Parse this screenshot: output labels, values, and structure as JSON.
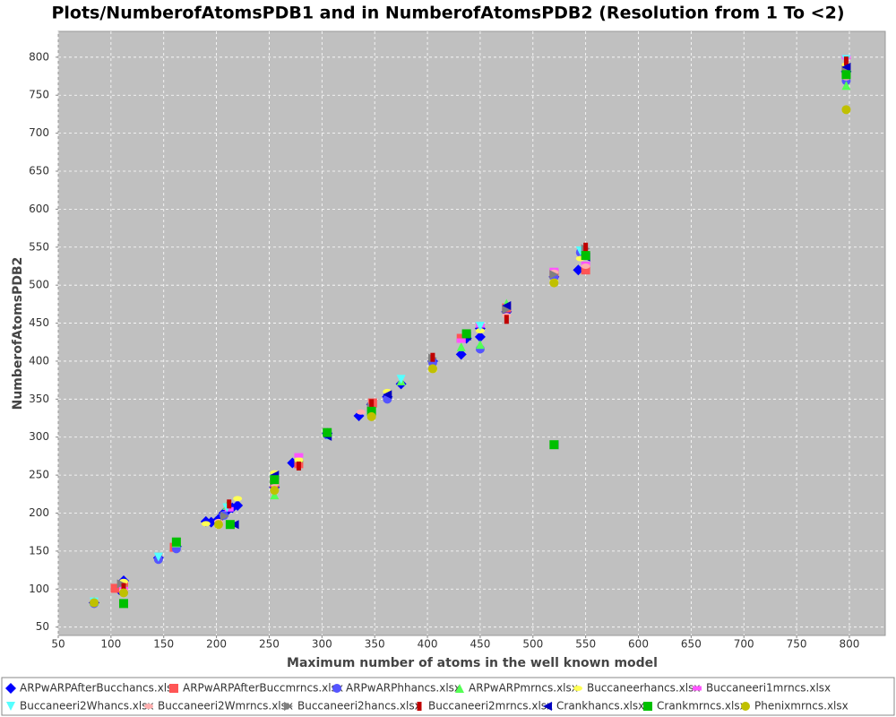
{
  "chart_data": {
    "type": "scatter",
    "title": "Plots/NumberofAtomsPDB1 and in NumberofAtomsPDB2 (Resolution from 1 To <2)",
    "x_label": "Maximum number of atoms in the well known model",
    "y_label": "NumberofAtomsPDB2",
    "xlim": [
      50,
      834
    ],
    "ylim": [
      39,
      834
    ],
    "xticks": [
      50,
      100,
      150,
      200,
      250,
      300,
      350,
      400,
      450,
      500,
      550,
      600,
      650,
      700,
      750,
      800
    ],
    "yticks": [
      50,
      100,
      150,
      200,
      250,
      300,
      350,
      400,
      450,
      500,
      550,
      600,
      650,
      700,
      750,
      800
    ],
    "grid": true,
    "series": [
      {
        "name": "ARPwARPAfterBucchancs.xlsx",
        "color": "#0000ff",
        "shape": "diamond",
        "x": [
          84,
          108,
          112,
          145,
          162,
          190,
          195,
          202,
          207,
          210,
          215,
          220,
          255,
          272,
          305,
          335,
          347,
          362,
          375,
          405,
          432,
          437,
          450,
          450,
          475,
          520,
          543,
          797
        ],
        "values": [
          82,
          99,
          111,
          141,
          156,
          189,
          188,
          192,
          200,
          203,
          207,
          210,
          234,
          266,
          305,
          328,
          343,
          353,
          370,
          400,
          409,
          430,
          443,
          432,
          465,
          511,
          520,
          781
        ]
      },
      {
        "name": "ARPwARPAfterBuccmrncs.xlsx",
        "color": "#ff5555",
        "shape": "square",
        "x": [
          104,
          112,
          160,
          255,
          278,
          348,
          432,
          475,
          520,
          550,
          797
        ],
        "values": [
          101,
          104,
          155,
          240,
          265,
          345,
          430,
          470,
          515,
          520,
          785
        ]
      },
      {
        "name": "ARPwARPhhancs.xlsx",
        "color": "#5555ff",
        "shape": "circle",
        "x": [
          84,
          112,
          145,
          162,
          207,
          255,
          305,
          362,
          405,
          450,
          520,
          545,
          797
        ],
        "values": [
          81,
          96,
          139,
          153,
          197,
          248,
          303,
          350,
          398,
          416,
          510,
          543,
          769
        ]
      },
      {
        "name": "ARPwARPmrncs.xlsx",
        "color": "#55ff55",
        "shape": "triangle-up",
        "x": [
          84,
          112,
          162,
          210,
          255,
          278,
          347,
          375,
          432,
          450,
          475,
          550,
          797
        ],
        "values": [
          84,
          106,
          161,
          210,
          224,
          273,
          332,
          374,
          419,
          422,
          476,
          540,
          763
        ]
      },
      {
        "name": "Buccaneerhancs.xlsx",
        "color": "#ffff55",
        "shape": "ellipse",
        "x": [
          112,
          190,
          220,
          255,
          278,
          347,
          362,
          405,
          450,
          520,
          545,
          797
        ],
        "values": [
          110,
          186,
          219,
          253,
          270,
          337,
          360,
          388,
          440,
          505,
          535,
          790
        ]
      },
      {
        "name": "Buccaneeri1mrncs.xlsx",
        "color": "#ff55ff",
        "shape": "bar-h",
        "x": [
          112,
          212,
          278,
          432,
          450,
          520,
          550,
          797
        ],
        "values": [
          100,
          205,
          276,
          427,
          447,
          520,
          528,
          800
        ]
      },
      {
        "name": "Buccaneeri2Whancs.xlsx",
        "color": "#55ffff",
        "shape": "triangle-down",
        "x": [
          84,
          145,
          210,
          255,
          305,
          375,
          450,
          545,
          797
        ],
        "values": [
          83,
          142,
          207,
          245,
          302,
          376,
          446,
          545,
          797
        ]
      },
      {
        "name": "Buccaneeri2Wmrncs.xlsx",
        "color": "#ffafaf",
        "shape": "ellipse",
        "x": [
          112,
          202,
          255,
          337,
          437,
          475,
          520,
          550,
          797
        ],
        "values": [
          98,
          189,
          238,
          333,
          435,
          460,
          517,
          525,
          773
        ]
      },
      {
        "name": "Buccaneeri2hancs.xlsx",
        "color": "#808080",
        "shape": "triangle-right",
        "x": [
          110,
          208,
          255,
          347,
          405,
          475,
          520,
          550,
          797
        ],
        "values": [
          107,
          196,
          242,
          339,
          404,
          468,
          514,
          548,
          783
        ]
      },
      {
        "name": "Buccaneeri2mrncs.xlsx",
        "color": "#c00000",
        "shape": "bar-v",
        "x": [
          112,
          212,
          278,
          347,
          405,
          475,
          550,
          797
        ],
        "values": [
          102,
          212,
          262,
          344,
          405,
          455,
          550,
          795
        ]
      },
      {
        "name": "Crankhancs.xlsx",
        "color": "#0000c0",
        "shape": "triangle-left",
        "x": [
          112,
          217,
          255,
          305,
          362,
          437,
          475,
          520,
          550,
          797
        ],
        "values": [
          81,
          185,
          250,
          301,
          356,
          433,
          473,
          290,
          537,
          787
        ]
      },
      {
        "name": "Crankmrncs.xlsx",
        "color": "#00c000",
        "shape": "square",
        "x": [
          112,
          162,
          213,
          255,
          305,
          347,
          437,
          520,
          550,
          797
        ],
        "values": [
          81,
          162,
          185,
          244,
          306,
          334,
          436,
          290,
          539,
          777
        ]
      },
      {
        "name": "Phenixmrncs.xlsx",
        "color": "#c0c000",
        "shape": "circle",
        "x": [
          84,
          112,
          202,
          255,
          347,
          405,
          520,
          797
        ],
        "values": [
          82,
          95,
          185,
          230,
          327,
          390,
          503,
          731
        ]
      }
    ]
  }
}
